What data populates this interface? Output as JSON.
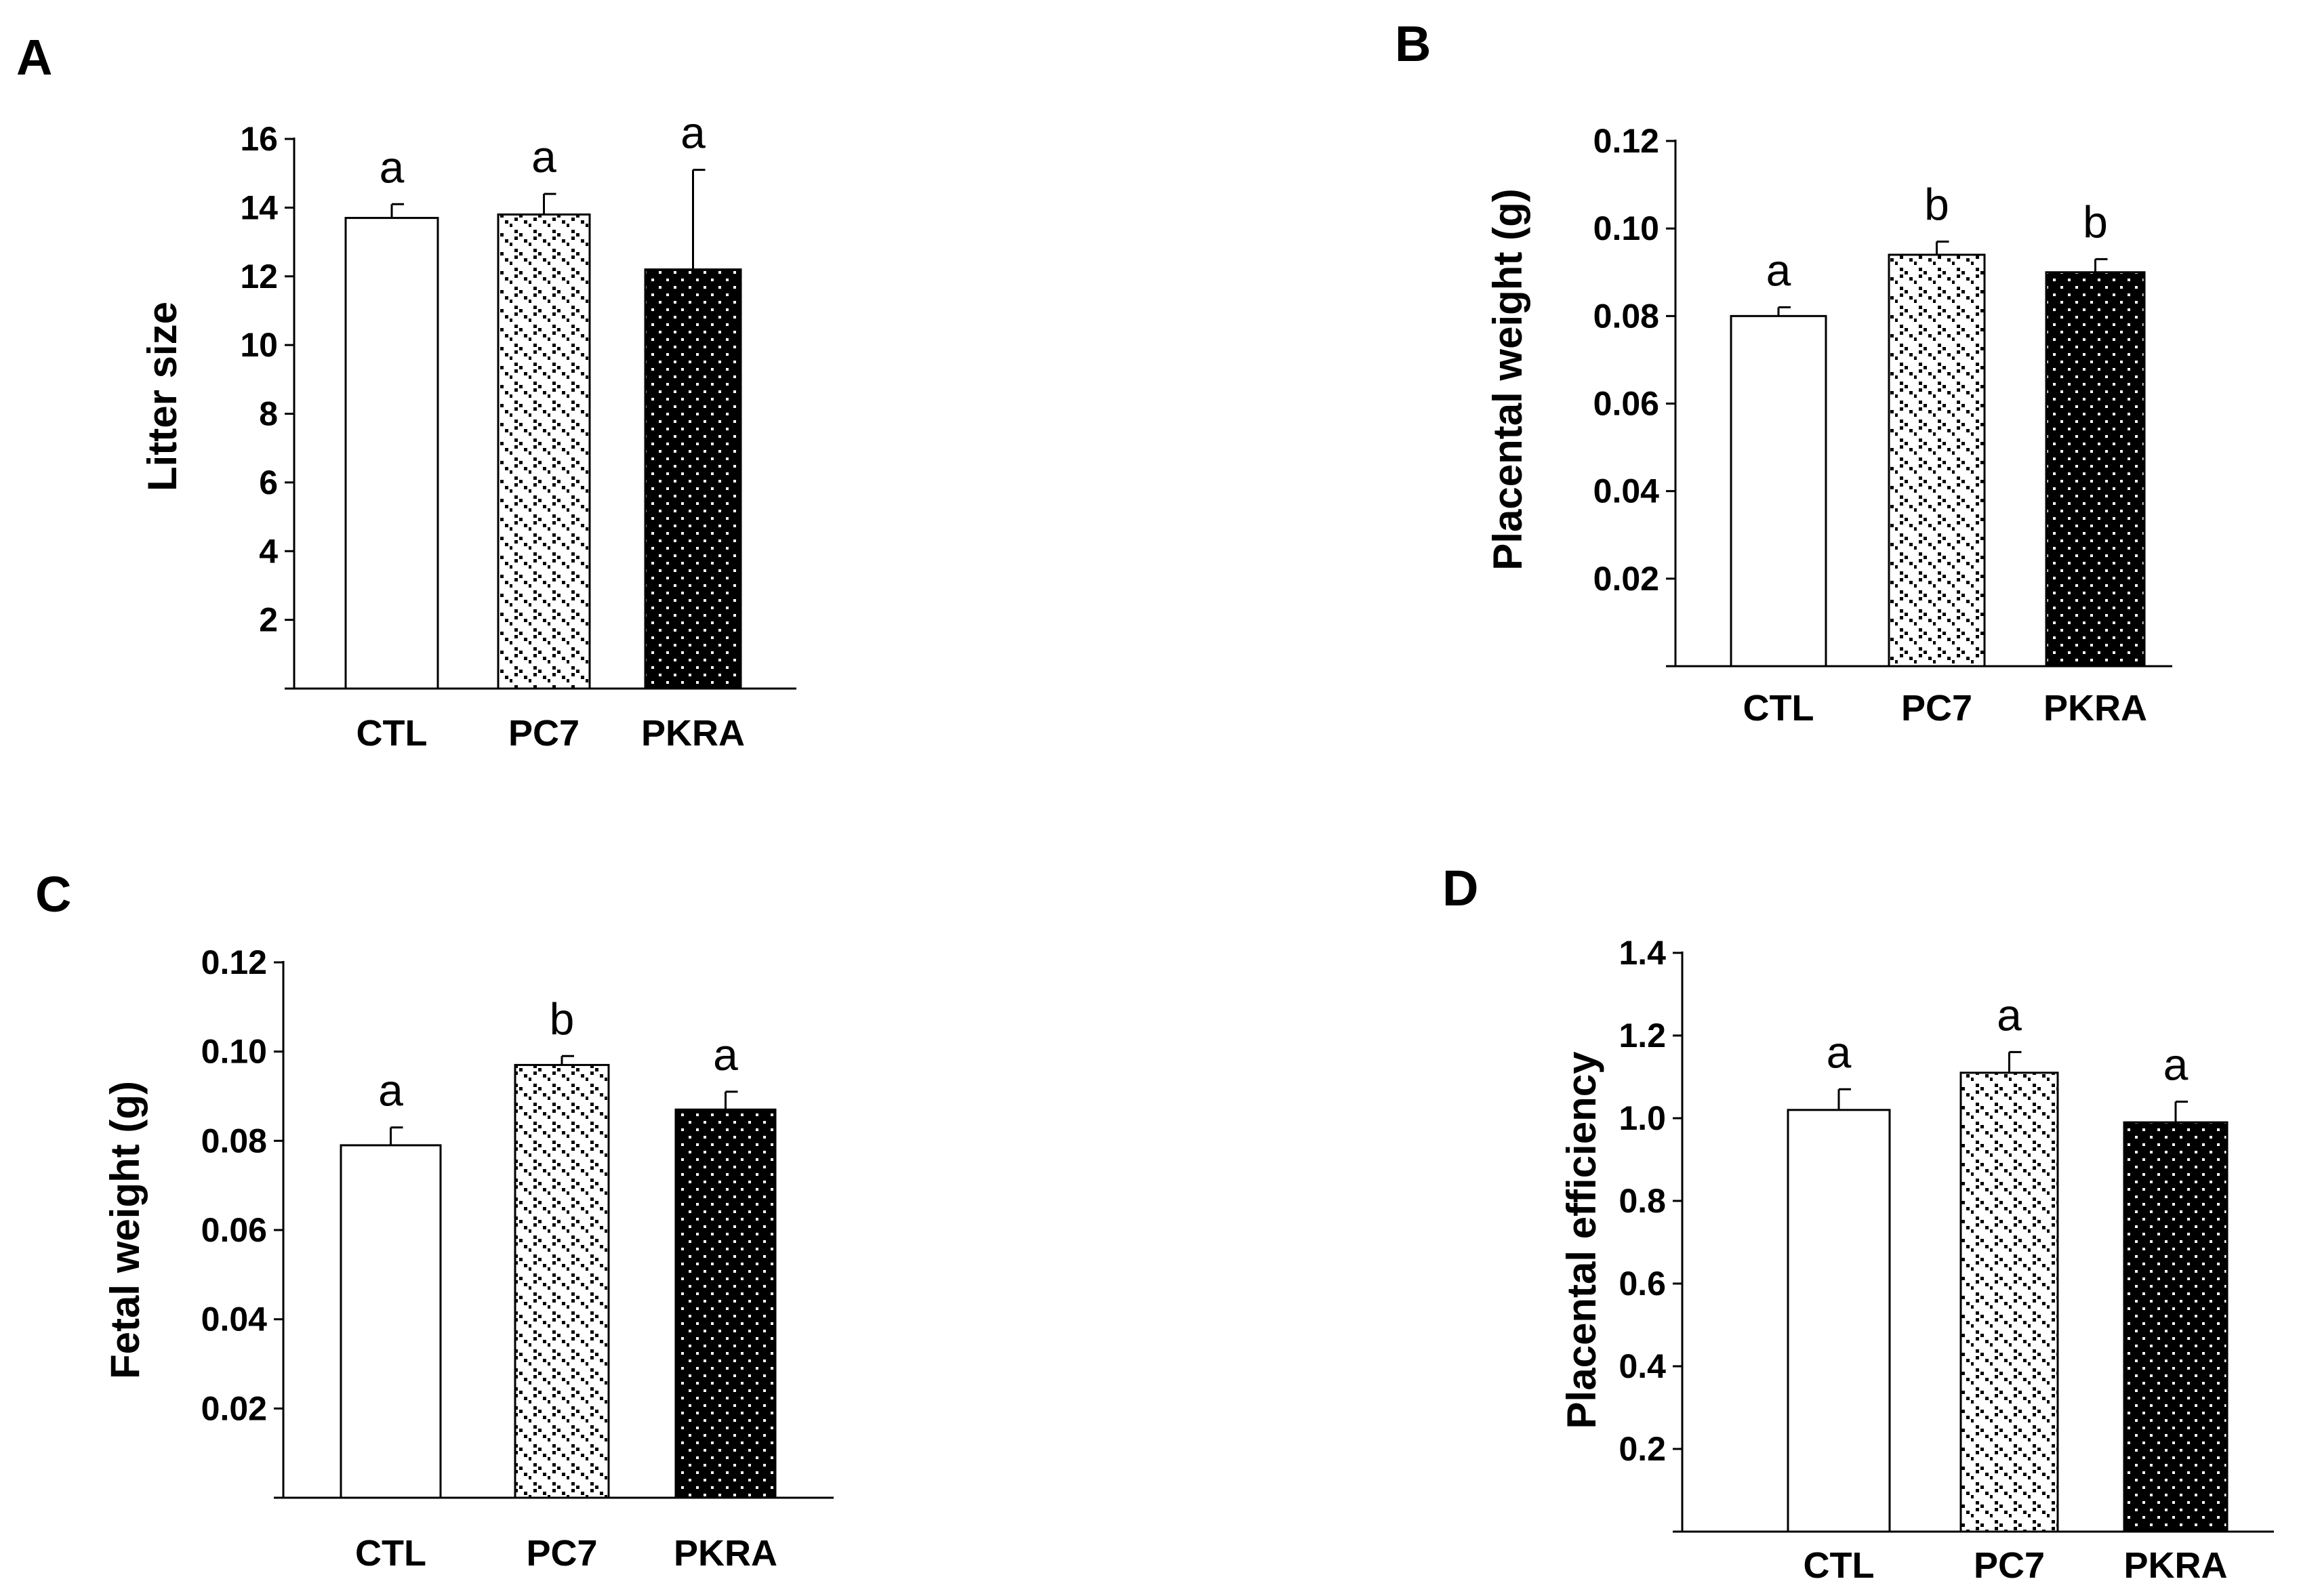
{
  "chart_data": [
    {
      "type": "bar",
      "panel": "A",
      "categories": [
        "CTL",
        "PC7",
        "PKRA"
      ],
      "values": [
        13.7,
        13.8,
        12.2
      ],
      "errors": [
        0.4,
        0.6,
        2.9
      ],
      "significance": [
        "a",
        "a",
        "a"
      ],
      "ylabel": "Litter size",
      "ylim": [
        0,
        16
      ],
      "yticks": [
        2,
        4,
        6,
        8,
        10,
        12,
        14,
        16
      ],
      "ytick_labels": [
        "2",
        "4",
        "6",
        "8",
        "10",
        "12",
        "14",
        "16"
      ],
      "fills": [
        "open",
        "dotted",
        "black-dotted"
      ]
    },
    {
      "type": "bar",
      "panel": "B",
      "categories": [
        "CTL",
        "PC7",
        "PKRA"
      ],
      "values": [
        0.08,
        0.094,
        0.09
      ],
      "errors": [
        0.002,
        0.003,
        0.003
      ],
      "significance": [
        "a",
        "b",
        "b"
      ],
      "ylabel": "Placental weight (g)",
      "ylim": [
        0,
        0.12
      ],
      "yticks": [
        0.02,
        0.04,
        0.06,
        0.08,
        0.1,
        0.12
      ],
      "ytick_labels": [
        "0.02",
        "0.04",
        "0.06",
        "0.08",
        "0.10",
        "0.12"
      ],
      "fills": [
        "open",
        "dotted",
        "black-dotted"
      ]
    },
    {
      "type": "bar",
      "panel": "C",
      "categories": [
        "CTL",
        "PC7",
        "PKRA"
      ],
      "values": [
        0.079,
        0.097,
        0.087
      ],
      "errors": [
        0.004,
        0.002,
        0.004
      ],
      "significance": [
        "a",
        "b",
        "a"
      ],
      "ylabel": "Fetal weight (g)",
      "ylim": [
        0,
        0.12
      ],
      "yticks": [
        0.02,
        0.04,
        0.06,
        0.08,
        0.1,
        0.12
      ],
      "ytick_labels": [
        "0.02",
        "0.04",
        "0.06",
        "0.08",
        "0.10",
        "0.12"
      ],
      "fills": [
        "open",
        "dotted",
        "black-dotted"
      ]
    },
    {
      "type": "bar",
      "panel": "D",
      "categories": [
        "CTL",
        "PC7",
        "PKRA"
      ],
      "values": [
        1.02,
        1.11,
        0.99
      ],
      "errors": [
        0.05,
        0.05,
        0.05
      ],
      "significance": [
        "a",
        "a",
        "a"
      ],
      "ylabel": "Placental efficiency",
      "ylim": [
        0,
        1.4
      ],
      "yticks": [
        0.2,
        0.4,
        0.6,
        0.8,
        1.0,
        1.2,
        1.4
      ],
      "ytick_labels": [
        "0.2",
        "0.4",
        "0.6",
        "0.8",
        "1.0",
        "1.2",
        "1.4"
      ],
      "fills": [
        "open",
        "dotted",
        "black-dotted"
      ]
    }
  ]
}
